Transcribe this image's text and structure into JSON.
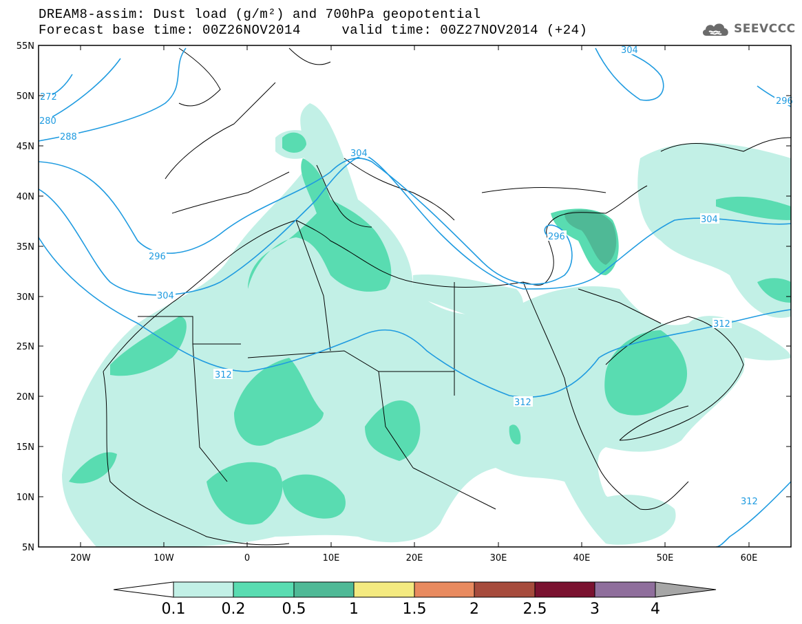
{
  "title": {
    "line1": "DREAM8-assim: Dust load (g/m²) and 700hPa geopotential",
    "line2": "Forecast base time: 00Z26NOV2014     valid time: 00Z27NOV2014 (+24)"
  },
  "brand": {
    "name": "SEEVCCC",
    "icon": "cloud-logo-icon"
  },
  "axes": {
    "lon_ticks": [
      "20W",
      "10W",
      "0",
      "10E",
      "20E",
      "30E",
      "40E",
      "50E",
      "60E"
    ],
    "lat_ticks": [
      "55N",
      "50N",
      "45N",
      "40N",
      "35N",
      "30N",
      "25N",
      "20N",
      "15N",
      "10N",
      "5N"
    ],
    "lon_range": [
      -25,
      65
    ],
    "lat_range": [
      5,
      55
    ]
  },
  "legend": {
    "levels": [
      "0.1",
      "0.2",
      "0.5",
      "1",
      "1.5",
      "2",
      "2.5",
      "3",
      "4"
    ],
    "colors": [
      "#ffffff",
      "#c2f0e6",
      "#59dcb1",
      "#4fb996",
      "#f4ea80",
      "#e88a5f",
      "#a64b3c",
      "#7a1230",
      "#8f6e9c",
      "#a6a6a6"
    ]
  },
  "contours": {
    "color": "#1f9be0",
    "labels": [
      "272",
      "280",
      "288",
      "296",
      "304",
      "312",
      "304",
      "296",
      "304",
      "296",
      "304",
      "312",
      "312",
      "312"
    ]
  },
  "fill_colors": {
    "light": "#c2f0e6",
    "medium": "#59dcb1",
    "dark": "#4fb996"
  }
}
